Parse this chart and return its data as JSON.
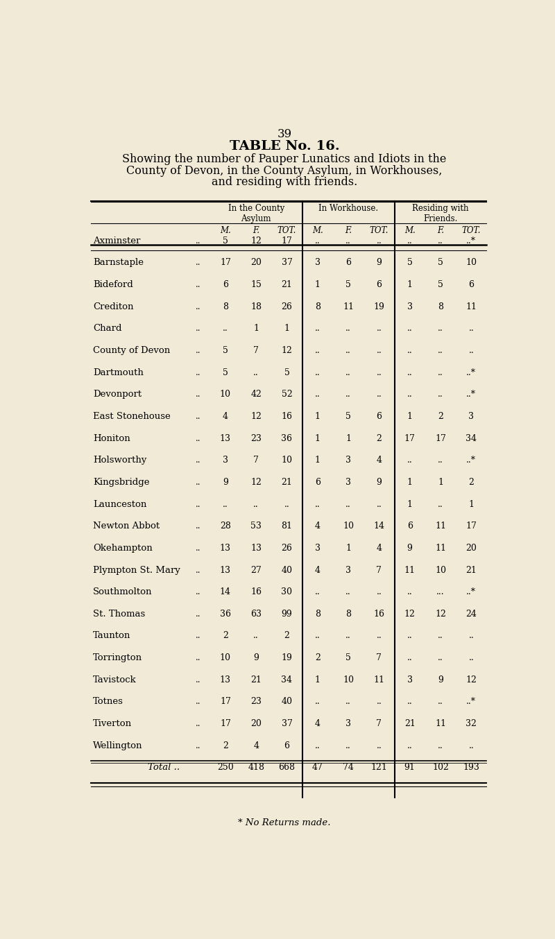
{
  "page_number": "39",
  "title_line1": "TABLE No. 16.",
  "title_line2": "Showing the number of Pauper Lunatics and Idiots in the",
  "title_line3": "County of Devon, in the County Asylum, in Workhouses,",
  "title_line4": "and residing with friends.",
  "footnote": "* No Returns made.",
  "bg_color": "#f0ead6",
  "header_groups": [
    "In the County\nAsylum",
    "In Workhouse.",
    "Residing with\nFriends."
  ],
  "sub_headers": [
    "M.",
    "F.",
    "TOT.",
    "M.",
    "F.",
    "TOT.",
    "M.",
    "F.",
    "TOT."
  ],
  "rows": [
    {
      "name": "Axminster",
      "asylum": [
        "5",
        "12",
        "17"
      ],
      "workhouse": [
        "..",
        "..",
        ".."
      ],
      "friends": [
        "..",
        "..",
        "..*"
      ]
    },
    {
      "name": "Barnstaple",
      "asylum": [
        "17",
        "20",
        "37"
      ],
      "workhouse": [
        "3",
        "6",
        "9"
      ],
      "friends": [
        "5",
        "5",
        "10"
      ]
    },
    {
      "name": "Bideford",
      "asylum": [
        "6",
        "15",
        "21"
      ],
      "workhouse": [
        "1",
        "5",
        "6"
      ],
      "friends": [
        "1",
        "5",
        "6"
      ]
    },
    {
      "name": "Crediton",
      "asylum": [
        "8",
        "18",
        "26"
      ],
      "workhouse": [
        "8",
        "11",
        "19"
      ],
      "friends": [
        "3",
        "8",
        "11"
      ]
    },
    {
      "name": "Chard",
      "asylum": [
        "..",
        "1",
        "1"
      ],
      "workhouse": [
        "..",
        "..",
        ".."
      ],
      "friends": [
        "..",
        "..",
        ".."
      ]
    },
    {
      "name": "County of Devon",
      "asylum": [
        "5",
        "7",
        "12"
      ],
      "workhouse": [
        "..",
        "..",
        ".."
      ],
      "friends": [
        "..",
        "..",
        ".."
      ]
    },
    {
      "name": "Dartmouth",
      "asylum": [
        "5",
        "..",
        "5"
      ],
      "workhouse": [
        "..",
        "..",
        ".."
      ],
      "friends": [
        "..",
        "..",
        "..*"
      ]
    },
    {
      "name": "Devonport",
      "asylum": [
        "10",
        "42",
        "52"
      ],
      "workhouse": [
        "..",
        "..",
        ".."
      ],
      "friends": [
        "..",
        "..",
        "..*"
      ]
    },
    {
      "name": "East Stonehouse",
      "asylum": [
        "4",
        "12",
        "16"
      ],
      "workhouse": [
        "1",
        "5",
        "6"
      ],
      "friends": [
        "1",
        "2",
        "3"
      ]
    },
    {
      "name": "Honiton",
      "asylum": [
        "13",
        "23",
        "36"
      ],
      "workhouse": [
        "1",
        "1",
        "2"
      ],
      "friends": [
        "17",
        "17",
        "34"
      ]
    },
    {
      "name": "Holsworthy",
      "asylum": [
        "3",
        "7",
        "10"
      ],
      "workhouse": [
        "1",
        "3",
        "4"
      ],
      "friends": [
        "..",
        "..",
        "..*"
      ]
    },
    {
      "name": "Kingsbridge",
      "asylum": [
        "9",
        "12",
        "21"
      ],
      "workhouse": [
        "6",
        "3",
        "9"
      ],
      "friends": [
        "1",
        "1",
        "2"
      ]
    },
    {
      "name": "Launceston",
      "asylum": [
        "..",
        "..",
        ".."
      ],
      "workhouse": [
        "..",
        "..",
        ".."
      ],
      "friends": [
        "1",
        "..",
        "1"
      ]
    },
    {
      "name": "Newton Abbot",
      "asylum": [
        "28",
        "53",
        "81"
      ],
      "workhouse": [
        "4",
        "10",
        "14"
      ],
      "friends": [
        "6",
        "11",
        "17"
      ]
    },
    {
      "name": "Okehampton",
      "asylum": [
        "13",
        "13",
        "26"
      ],
      "workhouse": [
        "3",
        "1",
        "4"
      ],
      "friends": [
        "9",
        "11",
        "20"
      ]
    },
    {
      "name": "Plympton St. Mary",
      "asylum": [
        "13",
        "27",
        "40"
      ],
      "workhouse": [
        "4",
        "3",
        "7"
      ],
      "friends": [
        "11",
        "10",
        "21"
      ]
    },
    {
      "name": "Southmolton",
      "asylum": [
        "14",
        "16",
        "30"
      ],
      "workhouse": [
        "..",
        "..",
        ".."
      ],
      "friends": [
        "..",
        "...",
        "..*"
      ]
    },
    {
      "name": "St. Thomas",
      "asylum": [
        "36",
        "63",
        "99"
      ],
      "workhouse": [
        "8",
        "8",
        "16"
      ],
      "friends": [
        "12",
        "12",
        "24"
      ]
    },
    {
      "name": "Taunton",
      "asylum": [
        "2",
        "..",
        "2"
      ],
      "workhouse": [
        "..",
        "..",
        ".."
      ],
      "friends": [
        "..",
        "..",
        ".."
      ]
    },
    {
      "name": "Torrington",
      "asylum": [
        "10",
        "9",
        "19"
      ],
      "workhouse": [
        "2",
        "5",
        "7"
      ],
      "friends": [
        "..",
        "..",
        ".."
      ]
    },
    {
      "name": "Tavistock",
      "asylum": [
        "13",
        "21",
        "34"
      ],
      "workhouse": [
        "1",
        "10",
        "11"
      ],
      "friends": [
        "3",
        "9",
        "12"
      ]
    },
    {
      "name": "Totnes",
      "asylum": [
        "17",
        "23",
        "40"
      ],
      "workhouse": [
        "..",
        "..",
        ".."
      ],
      "friends": [
        "..",
        "..",
        "..*"
      ]
    },
    {
      "name": "Tiverton",
      "asylum": [
        "17",
        "20",
        "37"
      ],
      "workhouse": [
        "4",
        "3",
        "7"
      ],
      "friends": [
        "21",
        "11",
        "32"
      ]
    },
    {
      "name": "Wellington",
      "asylum": [
        "2",
        "4",
        "6"
      ],
      "workhouse": [
        "..",
        "..",
        ".."
      ],
      "friends": [
        "..",
        "..",
        ".."
      ]
    },
    {
      "name": "Total ..",
      "asylum": [
        "250",
        "418",
        "668"
      ],
      "workhouse": [
        "47",
        "74",
        "121"
      ],
      "friends": [
        "91",
        "102",
        "193"
      ]
    }
  ]
}
